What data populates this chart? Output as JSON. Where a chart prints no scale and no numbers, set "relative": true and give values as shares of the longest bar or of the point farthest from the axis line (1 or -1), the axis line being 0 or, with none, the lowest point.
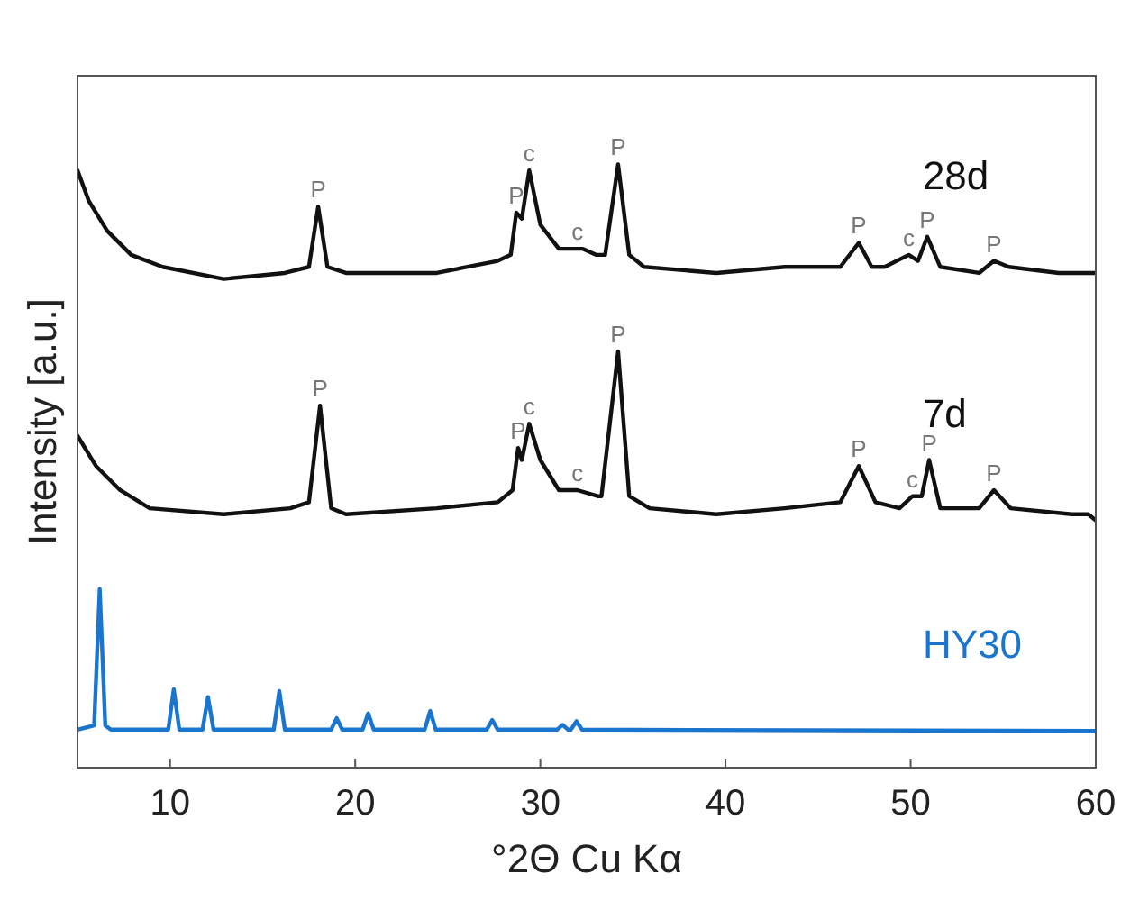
{
  "chart_data": {
    "type": "line",
    "xlabel": "°2Θ Cu Kα",
    "ylabel": "Intensity [a.u.]",
    "relative": true,
    "xlim": [
      5,
      60
    ],
    "xticks": [
      10,
      20,
      30,
      40,
      50,
      60
    ],
    "grid": false,
    "marker": "none",
    "line_style": "solid",
    "series": [
      {
        "name": "28d",
        "color": "#111111",
        "x": [
          5,
          5.6,
          6.6,
          7.9,
          9.6,
          12.9,
          16.2,
          17.5,
          18.0,
          18.5,
          19.5,
          24.4,
          27.7,
          28.4,
          28.7,
          29.0,
          29.4,
          30.0,
          31.0,
          32.0,
          32.3,
          33.0,
          33.5,
          34.2,
          34.8,
          35.6,
          39.5,
          43.2,
          46.2,
          47.2,
          47.9,
          48.6,
          49.9,
          50.4,
          50.9,
          51.6,
          53.7,
          54.5,
          55.3,
          58.0,
          60
        ],
        "values": [
          0.99,
          0.94,
          0.89,
          0.85,
          0.83,
          0.81,
          0.82,
          0.83,
          0.93,
          0.83,
          0.82,
          0.82,
          0.84,
          0.85,
          0.92,
          0.91,
          0.99,
          0.9,
          0.86,
          0.86,
          0.86,
          0.85,
          0.85,
          1,
          0.85,
          0.83,
          0.82,
          0.83,
          0.83,
          0.87,
          0.83,
          0.83,
          0.85,
          0.84,
          0.88,
          0.83,
          0.82,
          0.84,
          0.83,
          0.82,
          0.82
        ]
      },
      {
        "name": "7d",
        "color": "#111111",
        "x": [
          5,
          6.0,
          7.3,
          8.9,
          12.9,
          16.5,
          17.5,
          18.1,
          18.7,
          19.5,
          24.4,
          27.7,
          28.5,
          28.8,
          29.0,
          29.4,
          30.0,
          31.0,
          32.0,
          33.1,
          33.3,
          34.2,
          34.8,
          35.9,
          39.5,
          43.2,
          46.2,
          47.2,
          48.1,
          49.4,
          50.1,
          50.6,
          51.0,
          51.6,
          53.7,
          54.5,
          55.4,
          58.7,
          59.6,
          60
        ],
        "values": [
          0.55,
          0.5,
          0.46,
          0.43,
          0.42,
          0.43,
          0.44,
          0.6,
          0.43,
          0.42,
          0.43,
          0.44,
          0.46,
          0.53,
          0.51,
          0.57,
          0.51,
          0.46,
          0.46,
          0.45,
          0.45,
          0.69,
          0.45,
          0.43,
          0.42,
          0.43,
          0.44,
          0.5,
          0.44,
          0.43,
          0.45,
          0.45,
          0.51,
          0.43,
          0.43,
          0.46,
          0.43,
          0.42,
          0.42,
          0.41
        ]
      },
      {
        "name": "HY30",
        "color": "#1a75cf",
        "x": [
          5,
          5.9,
          6.2,
          6.5,
          6.8,
          9.9,
          10.2,
          10.5,
          11.75,
          12.05,
          12.35,
          15.6,
          15.9,
          16.2,
          18.7,
          19.0,
          19.3,
          20.4,
          20.7,
          21.0,
          23.75,
          24.05,
          24.35,
          27.1,
          27.4,
          27.7,
          30.9,
          31.2,
          31.5,
          31.65,
          31.95,
          32.25,
          60
        ],
        "values": [
          0.063,
          0.07,
          0.296,
          0.07,
          0.063,
          0.063,
          0.13,
          0.063,
          0.063,
          0.117,
          0.063,
          0.063,
          0.127,
          0.063,
          0.063,
          0.082,
          0.063,
          0.063,
          0.09,
          0.063,
          0.063,
          0.094,
          0.063,
          0.063,
          0.079,
          0.063,
          0.063,
          0.071,
          0.063,
          0.063,
          0.077,
          0.063,
          0.061
        ]
      }
    ],
    "annotations": [
      {
        "text": "P",
        "x": 18.0,
        "y": 0.93
      },
      {
        "text": "P",
        "x": 28.7,
        "y": 0.92
      },
      {
        "text": "c",
        "x": 29.4,
        "y": 0.99
      },
      {
        "text": "c",
        "x": 32.0,
        "y": 0.86
      },
      {
        "text": "P",
        "x": 34.2,
        "y": 1
      },
      {
        "text": "P",
        "x": 47.2,
        "y": 0.87
      },
      {
        "text": "c",
        "x": 49.9,
        "y": 0.85
      },
      {
        "text": "P",
        "x": 50.9,
        "y": 0.88
      },
      {
        "text": "P",
        "x": 54.5,
        "y": 0.84
      },
      {
        "text": "P",
        "x": 18.1,
        "y": 0.6
      },
      {
        "text": "P",
        "x": 28.8,
        "y": 0.53
      },
      {
        "text": "c",
        "x": 29.4,
        "y": 0.57
      },
      {
        "text": "c",
        "x": 32.0,
        "y": 0.46
      },
      {
        "text": "P",
        "x": 34.2,
        "y": 0.69
      },
      {
        "text": "P",
        "x": 47.2,
        "y": 0.5
      },
      {
        "text": "c",
        "x": 50.1,
        "y": 0.45
      },
      {
        "text": "P",
        "x": 51.0,
        "y": 0.51
      },
      {
        "text": "P",
        "x": 54.5,
        "y": 0.46
      }
    ]
  }
}
